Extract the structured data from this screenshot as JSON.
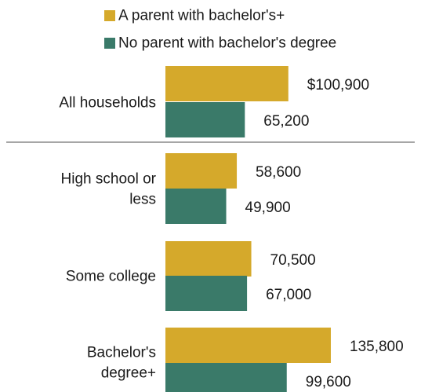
{
  "chart_data": {
    "type": "bar",
    "orientation": "horizontal",
    "legend_position": "top",
    "grid": false,
    "xlim": [
      0,
      135800
    ],
    "colors": [
      "#d5a92b",
      "#3a7a69"
    ],
    "categories": [
      [
        "All households"
      ],
      [
        "High school or",
        "less"
      ],
      [
        "Some college"
      ],
      [
        "Bachelor's",
        "degree+"
      ]
    ],
    "series": [
      {
        "name": "A parent with bachelor's+",
        "values": [
          100900,
          58600,
          70500,
          135800
        ]
      },
      {
        "name": "No parent with bachelor's degree",
        "values": [
          65200,
          49900,
          67000,
          99600
        ]
      }
    ],
    "value_labels": [
      [
        "$100,900",
        "58,600",
        "70,500",
        "135,800"
      ],
      [
        "65,200",
        "49,900",
        "67,000",
        "99,600"
      ]
    ]
  }
}
